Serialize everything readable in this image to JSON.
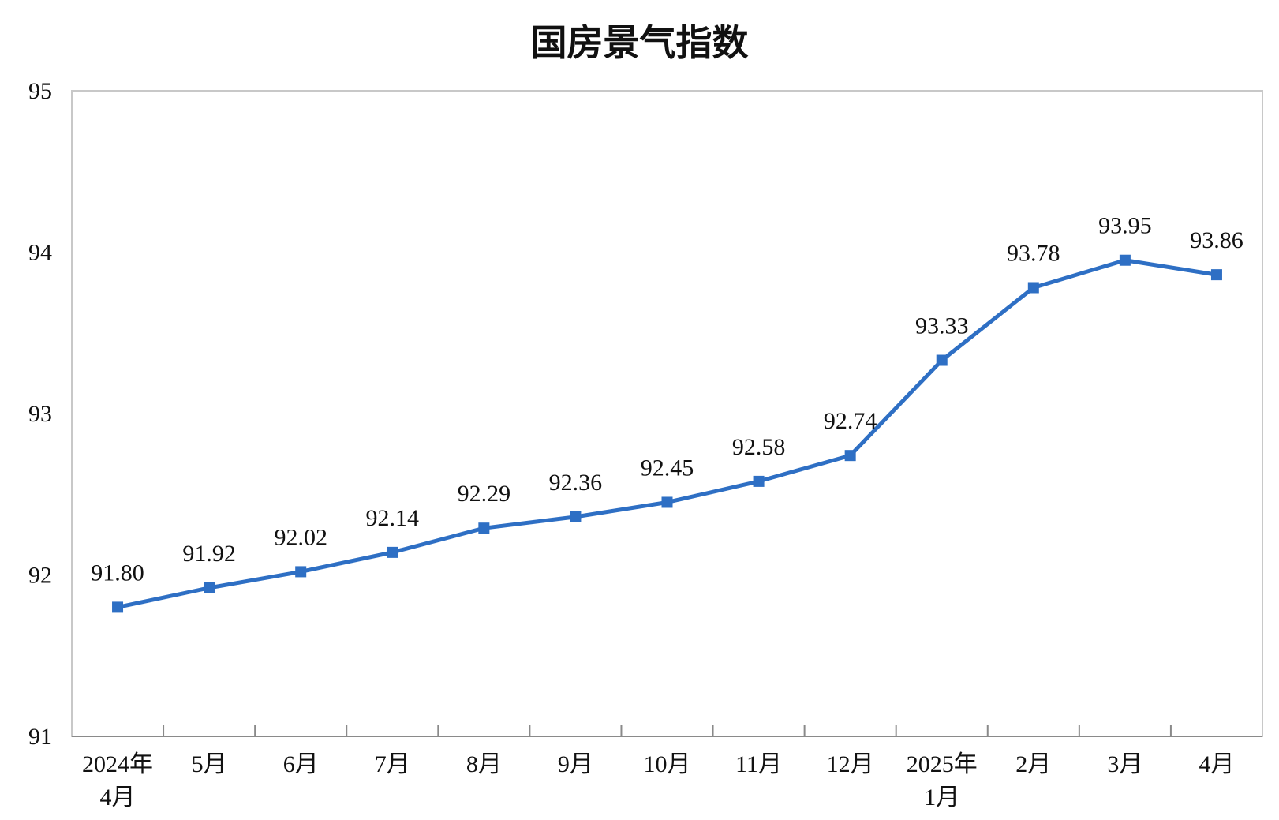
{
  "chart_data": {
    "type": "line",
    "title": "国房景气指数",
    "xlabel": "",
    "ylabel": "",
    "ylim": [
      91,
      95
    ],
    "yticks": [
      91,
      92,
      93,
      94,
      95
    ],
    "grid": false,
    "legend": "none",
    "line_color": "#2E6FC4",
    "categories": [
      [
        "2024年",
        "4月"
      ],
      [
        "5月"
      ],
      [
        "6月"
      ],
      [
        "7月"
      ],
      [
        "8月"
      ],
      [
        "9月"
      ],
      [
        "10月"
      ],
      [
        "11月"
      ],
      [
        "12月"
      ],
      [
        "2025年",
        "1月"
      ],
      [
        "2月"
      ],
      [
        "3月"
      ],
      [
        "4月"
      ]
    ],
    "values": [
      91.8,
      91.92,
      92.02,
      92.14,
      92.29,
      92.36,
      92.45,
      92.58,
      92.74,
      93.33,
      93.78,
      93.95,
      93.86
    ],
    "data_labels": [
      "91.80",
      "91.92",
      "92.02",
      "92.14",
      "92.29",
      "92.36",
      "92.45",
      "92.58",
      "92.74",
      "93.33",
      "93.78",
      "93.95",
      "93.86"
    ]
  }
}
